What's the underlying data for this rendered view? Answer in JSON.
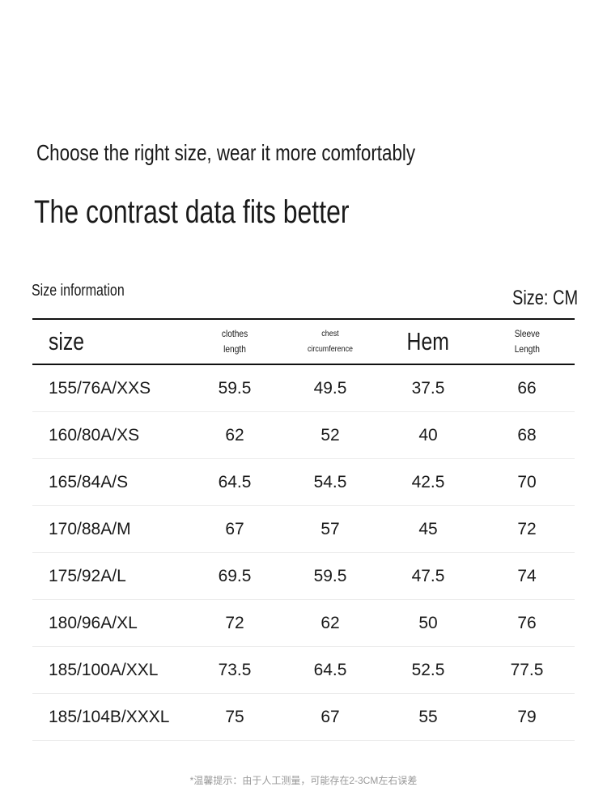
{
  "heading": "Choose the right size, wear it more comfortably",
  "subheading": "The contrast data fits better",
  "section_label": "Size information",
  "unit_label": "Size: CM",
  "table": {
    "headers": [
      "size",
      "clothes\nlength",
      "chest\ncircumference",
      "Hem",
      "Sleeve\nLength"
    ],
    "rows": [
      [
        "155/76A/XXS",
        "59.5",
        "49.5",
        "37.5",
        "66"
      ],
      [
        "160/80A/XS",
        "62",
        "52",
        "40",
        "68"
      ],
      [
        "165/84A/S",
        "64.5",
        "54.5",
        "42.5",
        "70"
      ],
      [
        "170/88A/M",
        "67",
        "57",
        "45",
        "72"
      ],
      [
        "175/92A/L",
        "69.5",
        "59.5",
        "47.5",
        "74"
      ],
      [
        "180/96A/XL",
        "72",
        "62",
        "50",
        "76"
      ],
      [
        "185/100A/XXL",
        "73.5",
        "64.5",
        "52.5",
        "77.5"
      ],
      [
        "185/104B/XXXL",
        "75",
        "67",
        "55",
        "79"
      ]
    ]
  },
  "footnote": "*温馨提示：由于人工测量，可能存在2-3CM左右误差"
}
